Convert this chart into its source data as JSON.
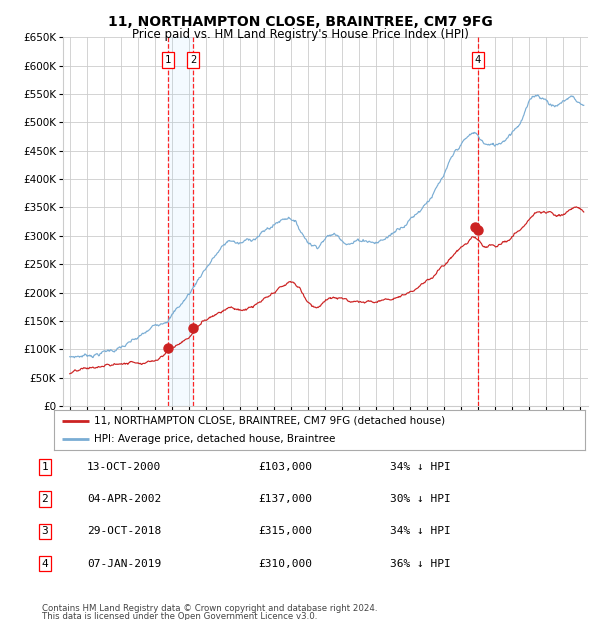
{
  "title": "11, NORTHAMPTON CLOSE, BRAINTREE, CM7 9FG",
  "subtitle": "Price paid vs. HM Land Registry's House Price Index (HPI)",
  "footer1": "Contains HM Land Registry data © Crown copyright and database right 2024.",
  "footer2": "This data is licensed under the Open Government Licence v3.0.",
  "ylim": [
    0,
    650000
  ],
  "yticks": [
    0,
    50000,
    100000,
    150000,
    200000,
    250000,
    300000,
    350000,
    400000,
    450000,
    500000,
    550000,
    600000,
    650000
  ],
  "xlim_start": 1994.6,
  "xlim_end": 2025.5,
  "hpi_color": "#7aadd4",
  "price_color": "#cc2222",
  "bg_color": "#ffffff",
  "grid_color": "#cccccc",
  "sale_dates": [
    2000.79,
    2002.26,
    2018.83,
    2019.02
  ],
  "sale_prices": [
    103000,
    137000,
    315000,
    310000
  ],
  "sale_labels": [
    "1",
    "2",
    "3",
    "4"
  ],
  "legend_price_label": "11, NORTHAMPTON CLOSE, BRAINTREE, CM7 9FG (detached house)",
  "legend_hpi_label": "HPI: Average price, detached house, Braintree",
  "table_data": [
    [
      "1",
      "13-OCT-2000",
      "£103,000",
      "34% ↓ HPI"
    ],
    [
      "2",
      "04-APR-2002",
      "£137,000",
      "30% ↓ HPI"
    ],
    [
      "3",
      "29-OCT-2018",
      "£315,000",
      "34% ↓ HPI"
    ],
    [
      "4",
      "07-JAN-2019",
      "£310,000",
      "36% ↓ HPI"
    ]
  ],
  "hpi_keypoints": [
    [
      1995.0,
      87000
    ],
    [
      1996.0,
      91000
    ],
    [
      1997.0,
      98000
    ],
    [
      1998.0,
      105000
    ],
    [
      1999.0,
      114000
    ],
    [
      2000.0,
      130000
    ],
    [
      2001.0,
      158000
    ],
    [
      2002.0,
      192000
    ],
    [
      2003.0,
      240000
    ],
    [
      2004.0,
      275000
    ],
    [
      2004.5,
      285000
    ],
    [
      2005.0,
      278000
    ],
    [
      2005.5,
      282000
    ],
    [
      2006.0,
      290000
    ],
    [
      2007.0,
      308000
    ],
    [
      2007.5,
      318000
    ],
    [
      2008.0,
      325000
    ],
    [
      2008.5,
      305000
    ],
    [
      2009.0,
      285000
    ],
    [
      2009.5,
      278000
    ],
    [
      2010.0,
      295000
    ],
    [
      2010.5,
      300000
    ],
    [
      2011.0,
      295000
    ],
    [
      2011.5,
      292000
    ],
    [
      2012.0,
      295000
    ],
    [
      2012.5,
      298000
    ],
    [
      2013.0,
      295000
    ],
    [
      2013.5,
      300000
    ],
    [
      2014.0,
      310000
    ],
    [
      2014.5,
      325000
    ],
    [
      2015.0,
      340000
    ],
    [
      2015.5,
      355000
    ],
    [
      2016.0,
      375000
    ],
    [
      2016.5,
      395000
    ],
    [
      2017.0,
      415000
    ],
    [
      2017.5,
      440000
    ],
    [
      2018.0,
      460000
    ],
    [
      2018.5,
      472000
    ],
    [
      2018.83,
      476000
    ],
    [
      2019.0,
      470000
    ],
    [
      2019.5,
      455000
    ],
    [
      2020.0,
      450000
    ],
    [
      2020.5,
      460000
    ],
    [
      2021.0,
      480000
    ],
    [
      2021.5,
      500000
    ],
    [
      2022.0,
      530000
    ],
    [
      2022.5,
      545000
    ],
    [
      2023.0,
      540000
    ],
    [
      2023.5,
      530000
    ],
    [
      2024.0,
      535000
    ],
    [
      2024.5,
      545000
    ],
    [
      2025.0,
      535000
    ],
    [
      2025.25,
      530000
    ]
  ],
  "price_keypoints": [
    [
      1995.0,
      57000
    ],
    [
      1996.0,
      60000
    ],
    [
      1997.0,
      63000
    ],
    [
      1998.0,
      67000
    ],
    [
      1999.0,
      73000
    ],
    [
      2000.0,
      82000
    ],
    [
      2000.79,
      103000
    ],
    [
      2001.0,
      107000
    ],
    [
      2001.5,
      118000
    ],
    [
      2002.0,
      128000
    ],
    [
      2002.26,
      137000
    ],
    [
      2002.5,
      145000
    ],
    [
      2003.0,
      160000
    ],
    [
      2003.5,
      172000
    ],
    [
      2004.0,
      182000
    ],
    [
      2004.5,
      192000
    ],
    [
      2005.0,
      185000
    ],
    [
      2005.5,
      188000
    ],
    [
      2006.0,
      193000
    ],
    [
      2006.5,
      200000
    ],
    [
      2007.0,
      205000
    ],
    [
      2007.5,
      215000
    ],
    [
      2008.0,
      222000
    ],
    [
      2008.5,
      212000
    ],
    [
      2009.0,
      188000
    ],
    [
      2009.5,
      182000
    ],
    [
      2010.0,
      192000
    ],
    [
      2010.5,
      196000
    ],
    [
      2011.0,
      192000
    ],
    [
      2011.5,
      188000
    ],
    [
      2012.0,
      192000
    ],
    [
      2012.5,
      195000
    ],
    [
      2013.0,
      192000
    ],
    [
      2013.5,
      196000
    ],
    [
      2014.0,
      202000
    ],
    [
      2014.5,
      212000
    ],
    [
      2015.0,
      222000
    ],
    [
      2015.5,
      232000
    ],
    [
      2016.0,
      245000
    ],
    [
      2016.5,
      258000
    ],
    [
      2017.0,
      270000
    ],
    [
      2017.5,
      285000
    ],
    [
      2018.0,
      300000
    ],
    [
      2018.5,
      310000
    ],
    [
      2018.83,
      315000
    ],
    [
      2019.02,
      310000
    ],
    [
      2019.5,
      298000
    ],
    [
      2020.0,
      295000
    ],
    [
      2020.5,
      300000
    ],
    [
      2021.0,
      310000
    ],
    [
      2021.5,
      320000
    ],
    [
      2022.0,
      340000
    ],
    [
      2022.5,
      355000
    ],
    [
      2023.0,
      350000
    ],
    [
      2023.5,
      345000
    ],
    [
      2024.0,
      340000
    ],
    [
      2024.5,
      348000
    ],
    [
      2025.0,
      345000
    ],
    [
      2025.25,
      342000
    ]
  ]
}
